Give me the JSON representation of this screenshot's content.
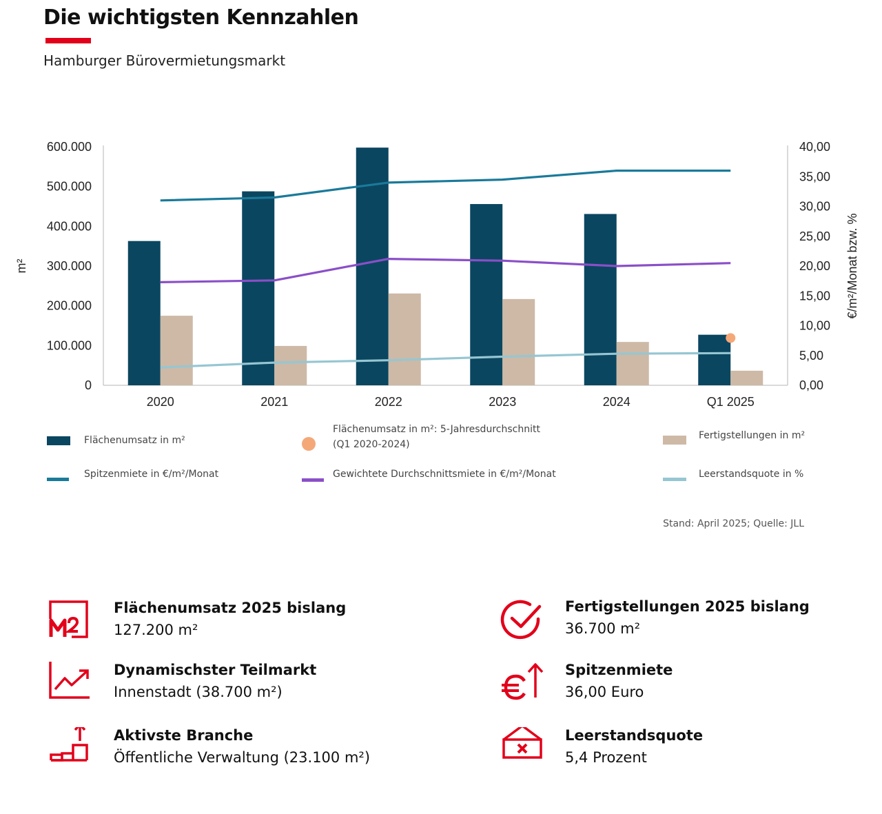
{
  "header": {
    "title": "Die wichtigsten Kennzahlen",
    "subtitle": "Hamburger Bürovermietungsmarkt"
  },
  "colors": {
    "accent": "#e2001a",
    "flaechenumsatz": "#0b4660",
    "fertigstellungen": "#cdb9a6",
    "spitzenmiete": "#1a7a9a",
    "durchschnittsmiete": "#8a4fc8",
    "leerstand": "#96c6d2",
    "durchschnitt_marker": "#f4a878"
  },
  "chart_data": {
    "type": "bar",
    "categories": [
      "2020",
      "2021",
      "2022",
      "2023",
      "2024",
      "Q1 2025"
    ],
    "ylabel": "m²",
    "y2label": "€/m²/Monat bzw. %",
    "ylim": [
      0,
      600000
    ],
    "y2lim": [
      0,
      40
    ],
    "yticks": [
      "0",
      "100.000",
      "200.000",
      "300.000",
      "400.000",
      "500.000",
      "600.000"
    ],
    "y2ticks": [
      "0,00",
      "5,00",
      "10,00",
      "15,00",
      "20,00",
      "25,00",
      "30,00",
      "35,00",
      "40,00"
    ],
    "grid": false,
    "legend_position": "bottom",
    "bar_series": [
      {
        "name": "Flächenumsatz in m²",
        "color": "#0b4660",
        "values": [
          363000,
          488000,
          598000,
          456000,
          431000,
          127200
        ]
      },
      {
        "name": "Fertigstellungen in m²",
        "color": "#cdb9a6",
        "values": [
          175000,
          99000,
          231000,
          217000,
          109000,
          36700
        ]
      }
    ],
    "line_series": [
      {
        "name": "Spitzenmiete in €/m²/Monat",
        "color": "#1a7a9a",
        "axis": "right",
        "values": [
          31.0,
          31.5,
          34.0,
          34.5,
          36.0,
          36.0
        ]
      },
      {
        "name": "Gewichtete Durchschnittsmiete in €/m²/Monat",
        "color": "#8a4fc8",
        "axis": "right",
        "values": [
          17.3,
          17.6,
          21.2,
          20.9,
          20.0,
          20.5
        ]
      },
      {
        "name": "Leerstandsquote in %",
        "color": "#96c6d2",
        "axis": "right",
        "values": [
          3.0,
          3.8,
          4.2,
          4.8,
          5.3,
          5.4
        ]
      }
    ],
    "point_series": [
      {
        "name": "Flächenumsatz in m²: 5-Jahresdurchschnitt (Q1 2020-2024)",
        "color": "#f4a878",
        "category": "Q1 2025",
        "value": 119000
      }
    ]
  },
  "legend": {
    "items": [
      {
        "label": "Flächenumsatz in m²",
        "label2": ""
      },
      {
        "label": "Flächenumsatz in m²: 5-Jahresdurchschnitt",
        "label2": "(Q1 2020-2024)"
      },
      {
        "label": "Fertigstellungen in m²",
        "label2": ""
      },
      {
        "label": "Spitzenmiete in €/m²/Monat",
        "label2": ""
      },
      {
        "label": "Gewichtete Durchschnittsmiete in €/m²/Monat",
        "label2": ""
      },
      {
        "label": "Leerstandsquote in %",
        "label2": ""
      }
    ]
  },
  "source": "Stand: April 2025; Quelle: JLL",
  "kpis": [
    {
      "icon": "m2-icon",
      "label": "Flächenumsatz 2025 bislang",
      "value": "127.200 m²"
    },
    {
      "icon": "checkmark-circle-icon",
      "label": "Fertigstellungen 2025 bislang",
      "value": "36.700 m²"
    },
    {
      "icon": "trend-chart-icon",
      "label": "Dynamischster Teilmarkt",
      "value": "Innenstadt (38.700 m²)"
    },
    {
      "icon": "euro-arrow-up-icon",
      "label": "Spitzenmiete",
      "value": "36,00 Euro"
    },
    {
      "icon": "steps-arrow-up-icon",
      "label": "Aktivste Branche",
      "value": "Öffentliche Verwaltung (23.100 m²)"
    },
    {
      "icon": "vacancy-sign-icon",
      "label": "Leerstandsquote",
      "value": "5,4 Prozent"
    }
  ]
}
